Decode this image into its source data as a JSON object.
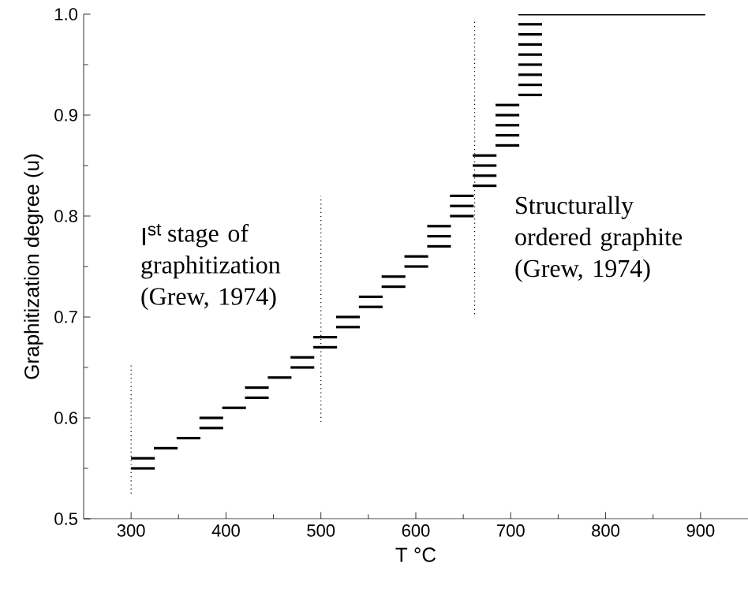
{
  "chart_data": {
    "type": "line",
    "xlabel": "T °C",
    "ylabel": "Graphitization degree (u)",
    "xlim": [
      250,
      950
    ],
    "ylim": [
      0.5,
      1.0
    ],
    "xticks": [
      300,
      400,
      500,
      600,
      700,
      800,
      900
    ],
    "yticks": [
      {
        "value": 0.5,
        "label": "0.5"
      },
      {
        "value": 0.6,
        "label": "0.6"
      },
      {
        "value": 0.7,
        "label": "0.7"
      },
      {
        "value": 0.8,
        "label": "0.8"
      },
      {
        "value": 0.9,
        "label": "0.9"
      },
      {
        "value": 1.0,
        "label": "1.0"
      }
    ],
    "grid": false,
    "marker": "none",
    "line_style": "solid",
    "annotations": [
      "\\mathrm{I}^{\\mathrm{st}}",
      "stage of graphitization (Grew, 1974)",
      "Structurally ordered graphite (Grew, 1974)"
    ],
    "series": [
      {
        "color": "#000000",
        "x": [
          300,
          325
        ],
        "values": [
          0.56,
          0.56
        ]
      },
      {
        "color": "#000000",
        "x": [
          300,
          325
        ],
        "values": [
          0.55,
          0.55
        ]
      },
      {
        "color": "#000000",
        "x": [
          324,
          349
        ],
        "values": [
          0.57,
          0.57
        ]
      },
      {
        "color": "#000000",
        "x": [
          348,
          373
        ],
        "values": [
          0.58,
          0.58
        ]
      },
      {
        "color": "#000000",
        "x": [
          372,
          397
        ],
        "values": [
          0.6,
          0.6
        ]
      },
      {
        "color": "#000000",
        "x": [
          372,
          397
        ],
        "values": [
          0.59,
          0.59
        ]
      },
      {
        "color": "#000000",
        "x": [
          396,
          421
        ],
        "values": [
          0.61,
          0.61
        ]
      },
      {
        "color": "#000000",
        "x": [
          420,
          445
        ],
        "values": [
          0.63,
          0.63
        ]
      },
      {
        "color": "#000000",
        "x": [
          420,
          445
        ],
        "values": [
          0.62,
          0.62
        ]
      },
      {
        "color": "#000000",
        "x": [
          444,
          469
        ],
        "values": [
          0.64,
          0.64
        ]
      },
      {
        "color": "#000000",
        "x": [
          468,
          493
        ],
        "values": [
          0.66,
          0.66
        ]
      },
      {
        "color": "#000000",
        "x": [
          468,
          493
        ],
        "values": [
          0.65,
          0.65
        ]
      },
      {
        "color": "#000000",
        "x": [
          492,
          517
        ],
        "values": [
          0.68,
          0.68
        ]
      },
      {
        "color": "#000000",
        "x": [
          492,
          517
        ],
        "values": [
          0.67,
          0.67
        ]
      },
      {
        "color": "#000000",
        "x": [
          516,
          541
        ],
        "values": [
          0.7,
          0.7
        ]
      },
      {
        "color": "#000000",
        "x": [
          516,
          541
        ],
        "values": [
          0.69,
          0.69
        ]
      },
      {
        "color": "#000000",
        "x": [
          540,
          565
        ],
        "values": [
          0.72,
          0.72
        ]
      },
      {
        "color": "#000000",
        "x": [
          540,
          565
        ],
        "values": [
          0.71,
          0.71
        ]
      },
      {
        "color": "#000000",
        "x": [
          564,
          589
        ],
        "values": [
          0.74,
          0.74
        ]
      },
      {
        "color": "#000000",
        "x": [
          564,
          589
        ],
        "values": [
          0.73,
          0.73
        ]
      },
      {
        "color": "#000000",
        "x": [
          588,
          613
        ],
        "values": [
          0.76,
          0.76
        ]
      },
      {
        "color": "#000000",
        "x": [
          588,
          613
        ],
        "values": [
          0.75,
          0.75
        ]
      },
      {
        "color": "#000000",
        "x": [
          612,
          637
        ],
        "values": [
          0.79,
          0.79
        ]
      },
      {
        "color": "#000000",
        "x": [
          612,
          637
        ],
        "values": [
          0.78,
          0.78
        ]
      },
      {
        "color": "#000000",
        "x": [
          612,
          637
        ],
        "values": [
          0.77,
          0.77
        ]
      },
      {
        "color": "#000000",
        "x": [
          636,
          661
        ],
        "values": [
          0.82,
          0.82
        ]
      },
      {
        "color": "#000000",
        "x": [
          636,
          661
        ],
        "values": [
          0.81,
          0.81
        ]
      },
      {
        "color": "#000000",
        "x": [
          636,
          661
        ],
        "values": [
          0.8,
          0.8
        ]
      },
      {
        "color": "#000000",
        "x": [
          660,
          685
        ],
        "values": [
          0.86,
          0.86
        ]
      },
      {
        "color": "#000000",
        "x": [
          660,
          685
        ],
        "values": [
          0.85,
          0.85
        ]
      },
      {
        "color": "#000000",
        "x": [
          660,
          685
        ],
        "values": [
          0.84,
          0.84
        ]
      },
      {
        "color": "#000000",
        "x": [
          660,
          685
        ],
        "values": [
          0.83,
          0.83
        ]
      },
      {
        "color": "#000000",
        "x": [
          684,
          709
        ],
        "values": [
          0.91,
          0.91
        ]
      },
      {
        "color": "#000000",
        "x": [
          684,
          709
        ],
        "values": [
          0.9,
          0.9
        ]
      },
      {
        "color": "#000000",
        "x": [
          684,
          709
        ],
        "values": [
          0.89,
          0.89
        ]
      },
      {
        "color": "#000000",
        "x": [
          684,
          709
        ],
        "values": [
          0.88,
          0.88
        ]
      },
      {
        "color": "#000000",
        "x": [
          684,
          709
        ],
        "values": [
          0.87,
          0.87
        ]
      },
      {
        "color": "#000000",
        "x": [
          708,
          733
        ],
        "values": [
          0.99,
          0.99
        ]
      },
      {
        "color": "#000000",
        "x": [
          708,
          733
        ],
        "values": [
          0.98,
          0.98
        ]
      },
      {
        "color": "#000000",
        "x": [
          708,
          733
        ],
        "values": [
          0.97,
          0.97
        ]
      },
      {
        "color": "#000000",
        "x": [
          708,
          733
        ],
        "values": [
          0.96,
          0.96
        ]
      },
      {
        "color": "#000000",
        "x": [
          708,
          733
        ],
        "values": [
          0.95,
          0.95
        ]
      },
      {
        "color": "#000000",
        "x": [
          708,
          733
        ],
        "values": [
          0.94,
          0.94
        ]
      },
      {
        "color": "#000000",
        "x": [
          708,
          733
        ],
        "values": [
          0.93,
          0.93
        ]
      },
      {
        "color": "#000000",
        "x": [
          708,
          733
        ],
        "values": [
          0.92,
          0.92
        ]
      },
      {
        "color": "#000000",
        "x": [
          708,
          905
        ],
        "values": [
          1.0,
          1.0
        ]
      },
      {
        "color": "#000000",
        "line_style": "dotted",
        "x": [
          300,
          300
        ],
        "values": [
          0.525,
          0.652
        ]
      },
      {
        "color": "#000000",
        "line_style": "dotted",
        "x": [
          500,
          500
        ],
        "values": [
          0.596,
          0.82
        ]
      },
      {
        "color": "#000000",
        "line_style": "dotted",
        "x": [
          662,
          662
        ],
        "values": [
          0.703,
          0.993
        ]
      }
    ]
  }
}
